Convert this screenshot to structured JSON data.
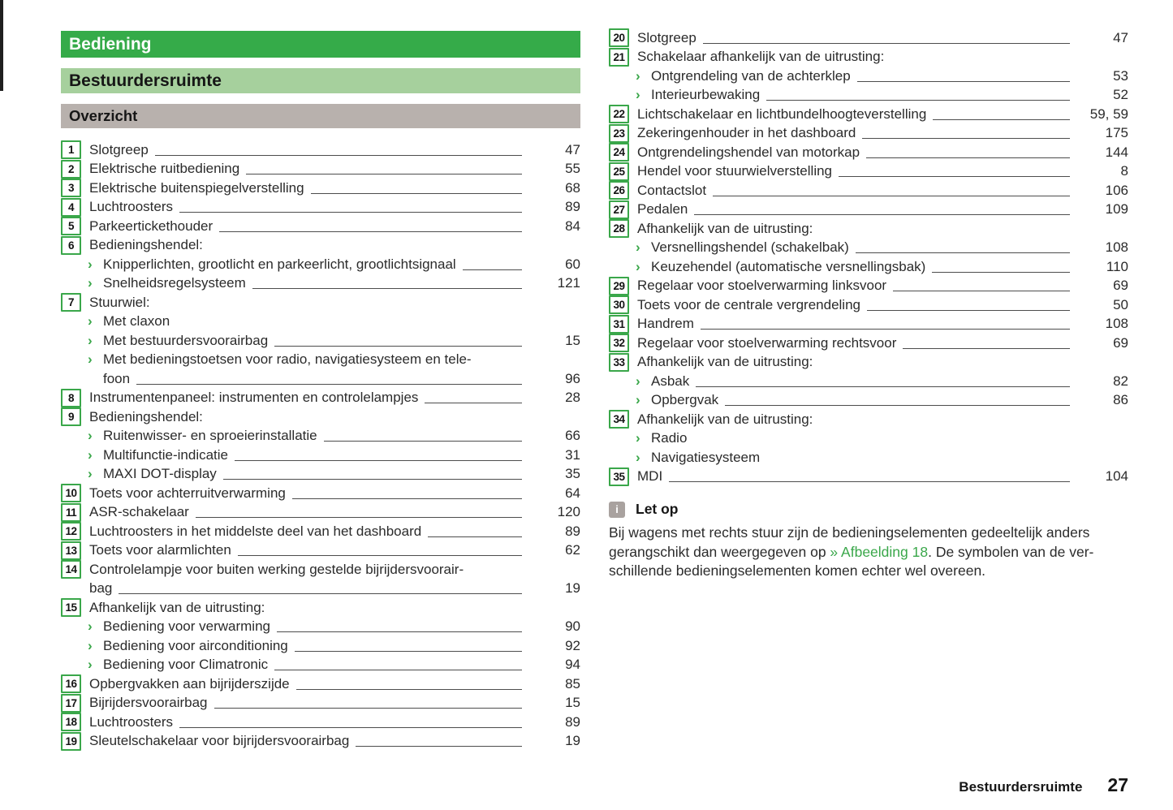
{
  "headers": {
    "section": "Bediening",
    "chapter": "Bestuurdersruimte",
    "subsection": "Overzicht"
  },
  "colors": {
    "accent_green": "#35ab49",
    "light_green": "#a6d09d",
    "gray_bar": "#b8b1ad",
    "note_icon_gray": "#a9a29f",
    "text": "#2b2b2b"
  },
  "toc": {
    "left_items": [
      {
        "num": "1",
        "label": "Slotgreep",
        "page": "47"
      },
      {
        "num": "2",
        "label": "Elektrische ruitbediening",
        "page": "55"
      },
      {
        "num": "3",
        "label": "Elektrische buitenspiegelverstelling",
        "page": "68"
      },
      {
        "num": "4",
        "label": "Luchtroosters",
        "page": "89"
      },
      {
        "num": "5",
        "label": "Parkeertickethouder",
        "page": "84"
      },
      {
        "num": "6",
        "label": "Bedieningshendel:",
        "subs": [
          {
            "label": "Knipperlichten, grootlicht en parkeerlicht, grootlichtsignaal",
            "page": "60"
          },
          {
            "label": "Snelheidsregelsysteem",
            "page": "121"
          }
        ]
      },
      {
        "num": "7",
        "label": "Stuurwiel:",
        "subs": [
          {
            "label": "Met claxon"
          },
          {
            "label": "Met bestuurdersvoorairbag",
            "page": "15"
          },
          {
            "label": "Met bedieningstoetsen voor radio, navigatiesysteem en tele-",
            "label2": "foon",
            "page": "96"
          }
        ]
      },
      {
        "num": "8",
        "label": "Instrumentenpaneel: instrumenten en controlelampjes",
        "page": "28"
      },
      {
        "num": "9",
        "label": "Bedieningshendel:",
        "subs": [
          {
            "label": "Ruitenwisser- en sproeierinstallatie",
            "page": "66"
          },
          {
            "label": "Multifunctie-indicatie",
            "page": "31"
          },
          {
            "label": "MAXI DOT-display",
            "page": "35"
          }
        ]
      },
      {
        "num": "10",
        "label": "Toets voor achterruitverwarming",
        "page": "64"
      },
      {
        "num": "11",
        "label": "ASR-schakelaar",
        "page": "120"
      },
      {
        "num": "12",
        "label": "Luchtroosters in het middelste deel van het dashboard",
        "page": "89"
      },
      {
        "num": "13",
        "label": "Toets voor alarmlichten",
        "page": "62"
      },
      {
        "num": "14",
        "label": "Controlelampje voor buiten werking gestelde bijrijdersvoorair-",
        "label2": "bag",
        "page": "19"
      },
      {
        "num": "15",
        "label": "Afhankelijk van de uitrusting:",
        "subs": [
          {
            "label": "Bediening voor verwarming",
            "page": "90"
          },
          {
            "label": "Bediening voor airconditioning",
            "page": "92"
          },
          {
            "label": "Bediening voor Climatronic",
            "page": "94"
          }
        ]
      },
      {
        "num": "16",
        "label": "Opbergvakken aan bijrijderszijde",
        "page": "85"
      },
      {
        "num": "17",
        "label": "Bijrijdersvoorairbag",
        "page": "15"
      },
      {
        "num": "18",
        "label": "Luchtroosters",
        "page": "89"
      },
      {
        "num": "19",
        "label": "Sleutelschakelaar voor bijrijdersvoorairbag",
        "page": "19"
      }
    ],
    "right_items": [
      {
        "num": "20",
        "label": "Slotgreep",
        "page": "47"
      },
      {
        "num": "21",
        "label": "Schakelaar afhankelijk van de uitrusting:",
        "subs": [
          {
            "label": "Ontgrendeling van de achterklep",
            "page": "53"
          },
          {
            "label": "Interieurbewaking",
            "page": "52"
          }
        ]
      },
      {
        "num": "22",
        "label": "Lichtschakelaar en lichtbundelhoogteverstelling",
        "page": "59, 59"
      },
      {
        "num": "23",
        "label": "Zekeringenhouder in het dashboard",
        "page": "175"
      },
      {
        "num": "24",
        "label": "Ontgrendelingshendel van motorkap",
        "page": "144"
      },
      {
        "num": "25",
        "label": "Hendel voor stuurwielverstelling",
        "page": "8"
      },
      {
        "num": "26",
        "label": "Contactslot",
        "page": "106"
      },
      {
        "num": "27",
        "label": "Pedalen",
        "page": "109"
      },
      {
        "num": "28",
        "label": "Afhankelijk van de uitrusting:",
        "subs": [
          {
            "label": "Versnellingshendel (schakelbak)",
            "page": "108"
          },
          {
            "label": "Keuzehendel (automatische versnellingsbak)",
            "page": "110"
          }
        ]
      },
      {
        "num": "29",
        "label": "Regelaar voor stoelverwarming linksvoor",
        "page": "69"
      },
      {
        "num": "30",
        "label": "Toets voor de centrale vergrendeling",
        "page": "50"
      },
      {
        "num": "31",
        "label": "Handrem",
        "page": "108"
      },
      {
        "num": "32",
        "label": "Regelaar voor stoelverwarming rechtsvoor",
        "page": "69"
      },
      {
        "num": "33",
        "label": "Afhankelijk van de uitrusting:",
        "subs": [
          {
            "label": "Asbak",
            "page": "82"
          },
          {
            "label": "Opbergvak",
            "page": "86"
          }
        ]
      },
      {
        "num": "34",
        "label": "Afhankelijk van de uitrusting:",
        "subs": [
          {
            "label": "Radio"
          },
          {
            "label": "Navigatiesysteem"
          }
        ]
      },
      {
        "num": "35",
        "label": "MDI",
        "page": "104"
      }
    ]
  },
  "note": {
    "icon": "info-icon",
    "icon_glyph": "i",
    "title": "Let op",
    "line1": "Bij wagens met rechts stuur zijn de bedieningselementen gedeeltelijk anders",
    "line2_before_link": "gerangschikt dan weergegeven op ",
    "line2_link": "» Afbeelding 18",
    "line2_after_link": ". De symbolen van de ver-",
    "line3": "schillende bedieningselementen komen echter wel overeen."
  },
  "footer": {
    "chapter": "Bestuurdersruimte",
    "page_number": "27"
  }
}
